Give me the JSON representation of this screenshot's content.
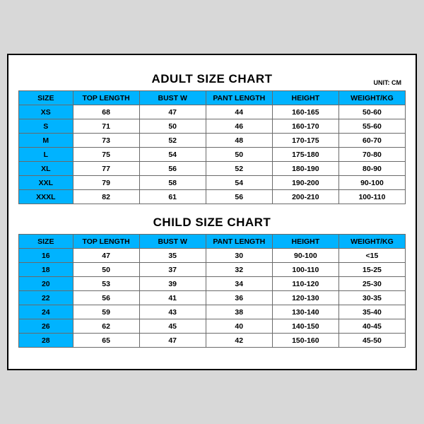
{
  "unit_label": "UNIT: CM",
  "colors": {
    "header_bg": "#00b3ff",
    "border": "#6a6a6a",
    "page_bg": "#d8d8d8"
  },
  "adult": {
    "title": "ADULT SIZE CHART",
    "columns": [
      "SIZE",
      "TOP LENGTH",
      "BUST W",
      "PANT LENGTH",
      "HEIGHT",
      "WEIGHT/KG"
    ],
    "rows": [
      [
        "XS",
        "68",
        "47",
        "44",
        "160-165",
        "50-60"
      ],
      [
        "S",
        "71",
        "50",
        "46",
        "160-170",
        "55-60"
      ],
      [
        "M",
        "73",
        "52",
        "48",
        "170-175",
        "60-70"
      ],
      [
        "L",
        "75",
        "54",
        "50",
        "175-180",
        "70-80"
      ],
      [
        "XL",
        "77",
        "56",
        "52",
        "180-190",
        "80-90"
      ],
      [
        "XXL",
        "79",
        "58",
        "54",
        "190-200",
        "90-100"
      ],
      [
        "XXXL",
        "82",
        "61",
        "56",
        "200-210",
        "100-110"
      ]
    ]
  },
  "child": {
    "title": "CHILD SIZE CHART",
    "columns": [
      "SIZE",
      "TOP LENGTH",
      "BUST W",
      "PANT LENGTH",
      "HEIGHT",
      "WEIGHT/KG"
    ],
    "rows": [
      [
        "16",
        "47",
        "35",
        "30",
        "90-100",
        "<15"
      ],
      [
        "18",
        "50",
        "37",
        "32",
        "100-110",
        "15-25"
      ],
      [
        "20",
        "53",
        "39",
        "34",
        "110-120",
        "25-30"
      ],
      [
        "22",
        "56",
        "41",
        "36",
        "120-130",
        "30-35"
      ],
      [
        "24",
        "59",
        "43",
        "38",
        "130-140",
        "35-40"
      ],
      [
        "26",
        "62",
        "45",
        "40",
        "140-150",
        "40-45"
      ],
      [
        "28",
        "65",
        "47",
        "42",
        "150-160",
        "45-50"
      ]
    ]
  }
}
